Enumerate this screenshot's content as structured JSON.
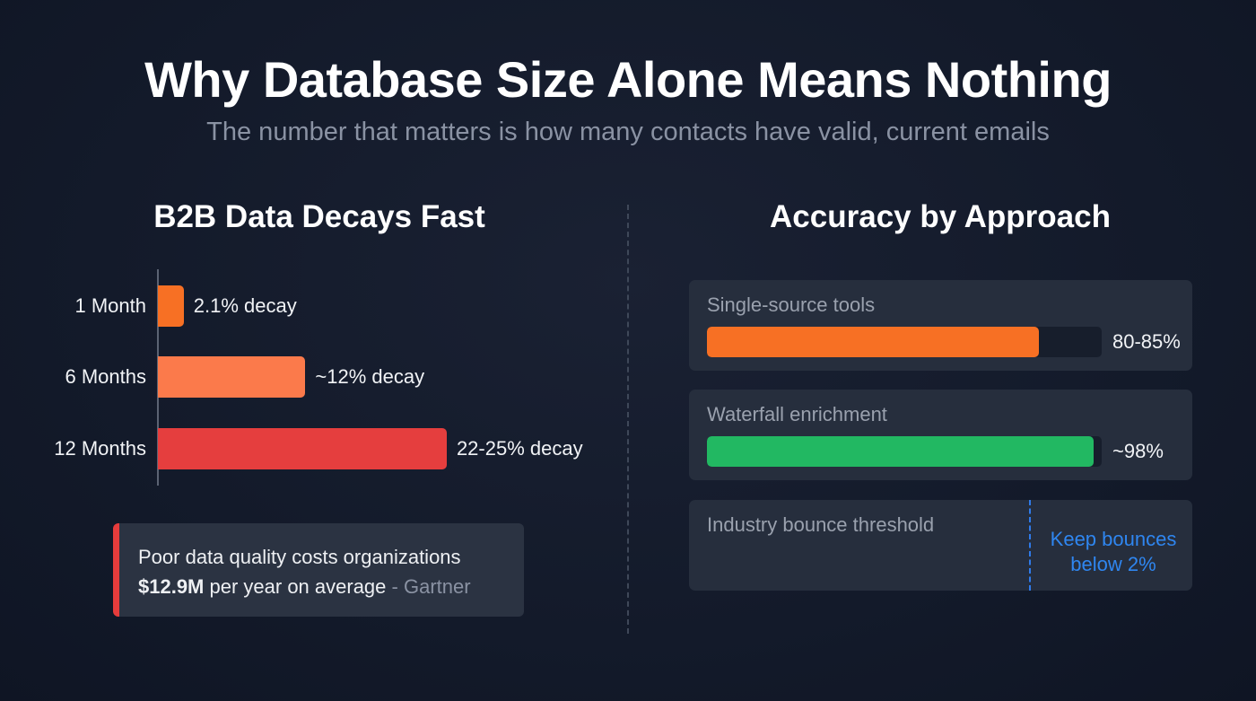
{
  "header": {
    "title": "Why Database Size Alone Means Nothing",
    "subtitle": "The number that matters is how many contacts have valid, current emails"
  },
  "colors": {
    "orange": "#f77024",
    "light_orange": "#fb7a4b",
    "red": "#e53e3e",
    "green": "#22b862",
    "blue": "#2f86f0"
  },
  "chart_data": [
    {
      "type": "bar",
      "orientation": "horizontal",
      "title": "B2B Data Decays Fast",
      "categories": [
        "1 Month",
        "6 Months",
        "12 Months"
      ],
      "values": [
        2.1,
        12,
        23.5
      ],
      "labels": [
        "2.1% decay",
        "~12% decay",
        "22-25% decay"
      ],
      "colors": [
        "#f77024",
        "#fb7a4b",
        "#e53e3e"
      ]
    },
    {
      "type": "bar",
      "orientation": "horizontal",
      "title": "Accuracy by Approach",
      "categories": [
        "Single-source tools",
        "Waterfall enrichment"
      ],
      "values": [
        84,
        98
      ],
      "labels": [
        "80-85%",
        "~98%"
      ],
      "xlim": [
        0,
        100
      ],
      "colors": [
        "#f77024",
        "#22b862"
      ],
      "threshold": {
        "label": "Industry bounce threshold",
        "note": "Keep bounces below 2%"
      }
    }
  ],
  "callout": {
    "text": "Poor data quality costs organizations",
    "amount": "$12.9M",
    "rest": " per year on average",
    "source": " - Gartner"
  }
}
